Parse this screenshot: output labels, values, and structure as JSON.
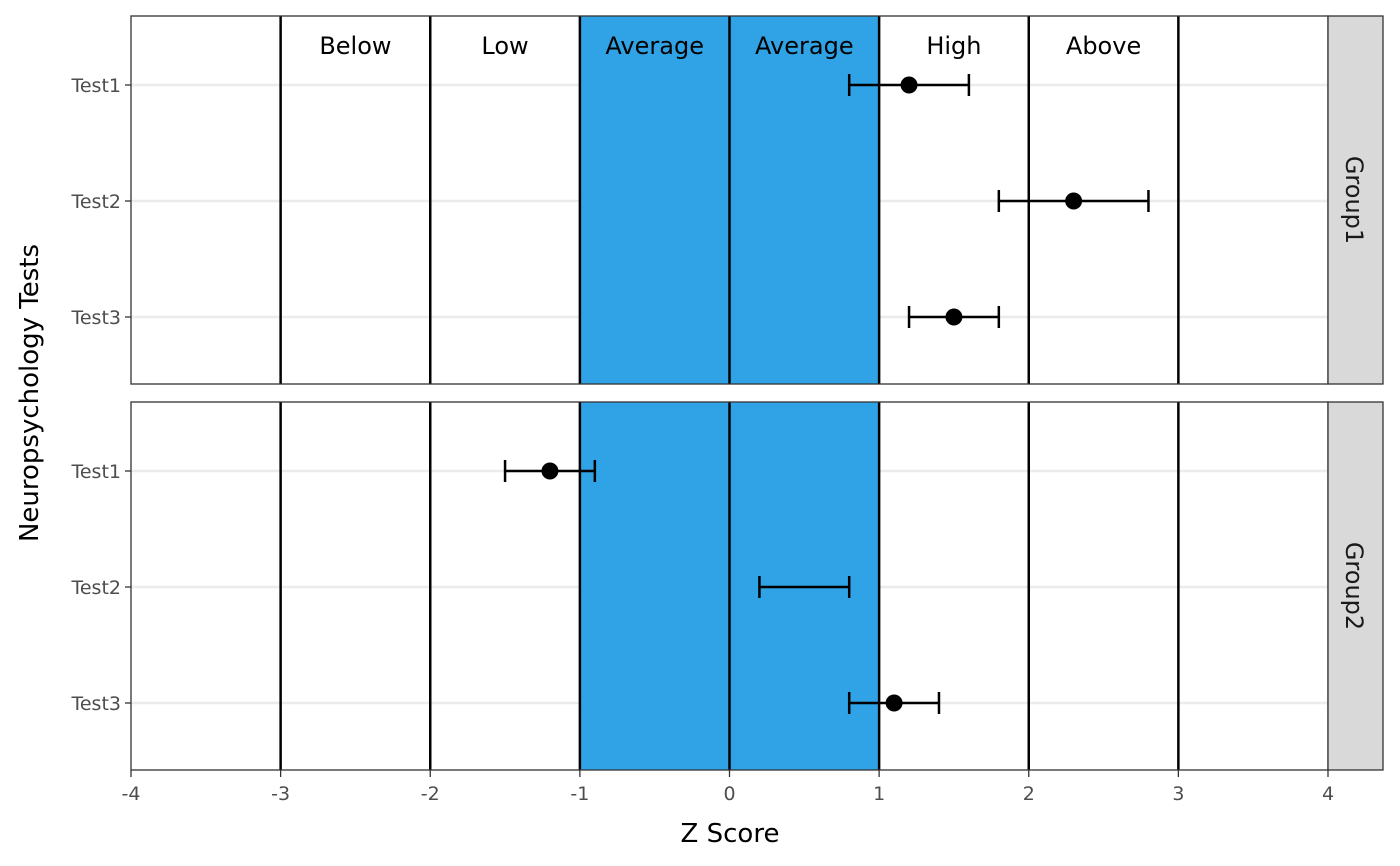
{
  "chart_data": {
    "type": "errorbar",
    "xlabel": "Z Score",
    "ylabel": "Neuropsychology Tests",
    "xlim": [
      -4,
      4
    ],
    "x_ticks": [
      -4,
      -3,
      -2,
      -1,
      0,
      1,
      2,
      3,
      4
    ],
    "categories": [
      "Test1",
      "Test2",
      "Test3"
    ],
    "band": {
      "from": -1,
      "to": 1,
      "color": "#2FA3E6"
    },
    "vlines": [
      -3,
      -2,
      -1,
      0,
      1,
      2,
      3
    ],
    "region_labels": [
      {
        "x": -2.5,
        "text": "Below"
      },
      {
        "x": -1.5,
        "text": "Low"
      },
      {
        "x": -0.5,
        "text": "Average"
      },
      {
        "x": 0.5,
        "text": "Average"
      },
      {
        "x": 1.5,
        "text": "High"
      },
      {
        "x": 2.5,
        "text": "Above"
      }
    ],
    "grid": true,
    "panels": [
      {
        "name": "Group1",
        "points": [
          {
            "test": "Test1",
            "z": 1.2,
            "lo": 0.8,
            "hi": 1.6
          },
          {
            "test": "Test2",
            "z": 2.3,
            "lo": 1.8,
            "hi": 2.8
          },
          {
            "test": "Test3",
            "z": 1.5,
            "lo": 1.2,
            "hi": 1.8
          }
        ]
      },
      {
        "name": "Group2",
        "points": [
          {
            "test": "Test1",
            "z": -1.2,
            "lo": -1.5,
            "hi": -0.9
          },
          {
            "test": "Test2",
            "z": null,
            "lo": 0.2,
            "hi": 0.8
          },
          {
            "test": "Test3",
            "z": 1.1,
            "lo": 0.8,
            "hi": 1.4
          }
        ]
      }
    ]
  }
}
